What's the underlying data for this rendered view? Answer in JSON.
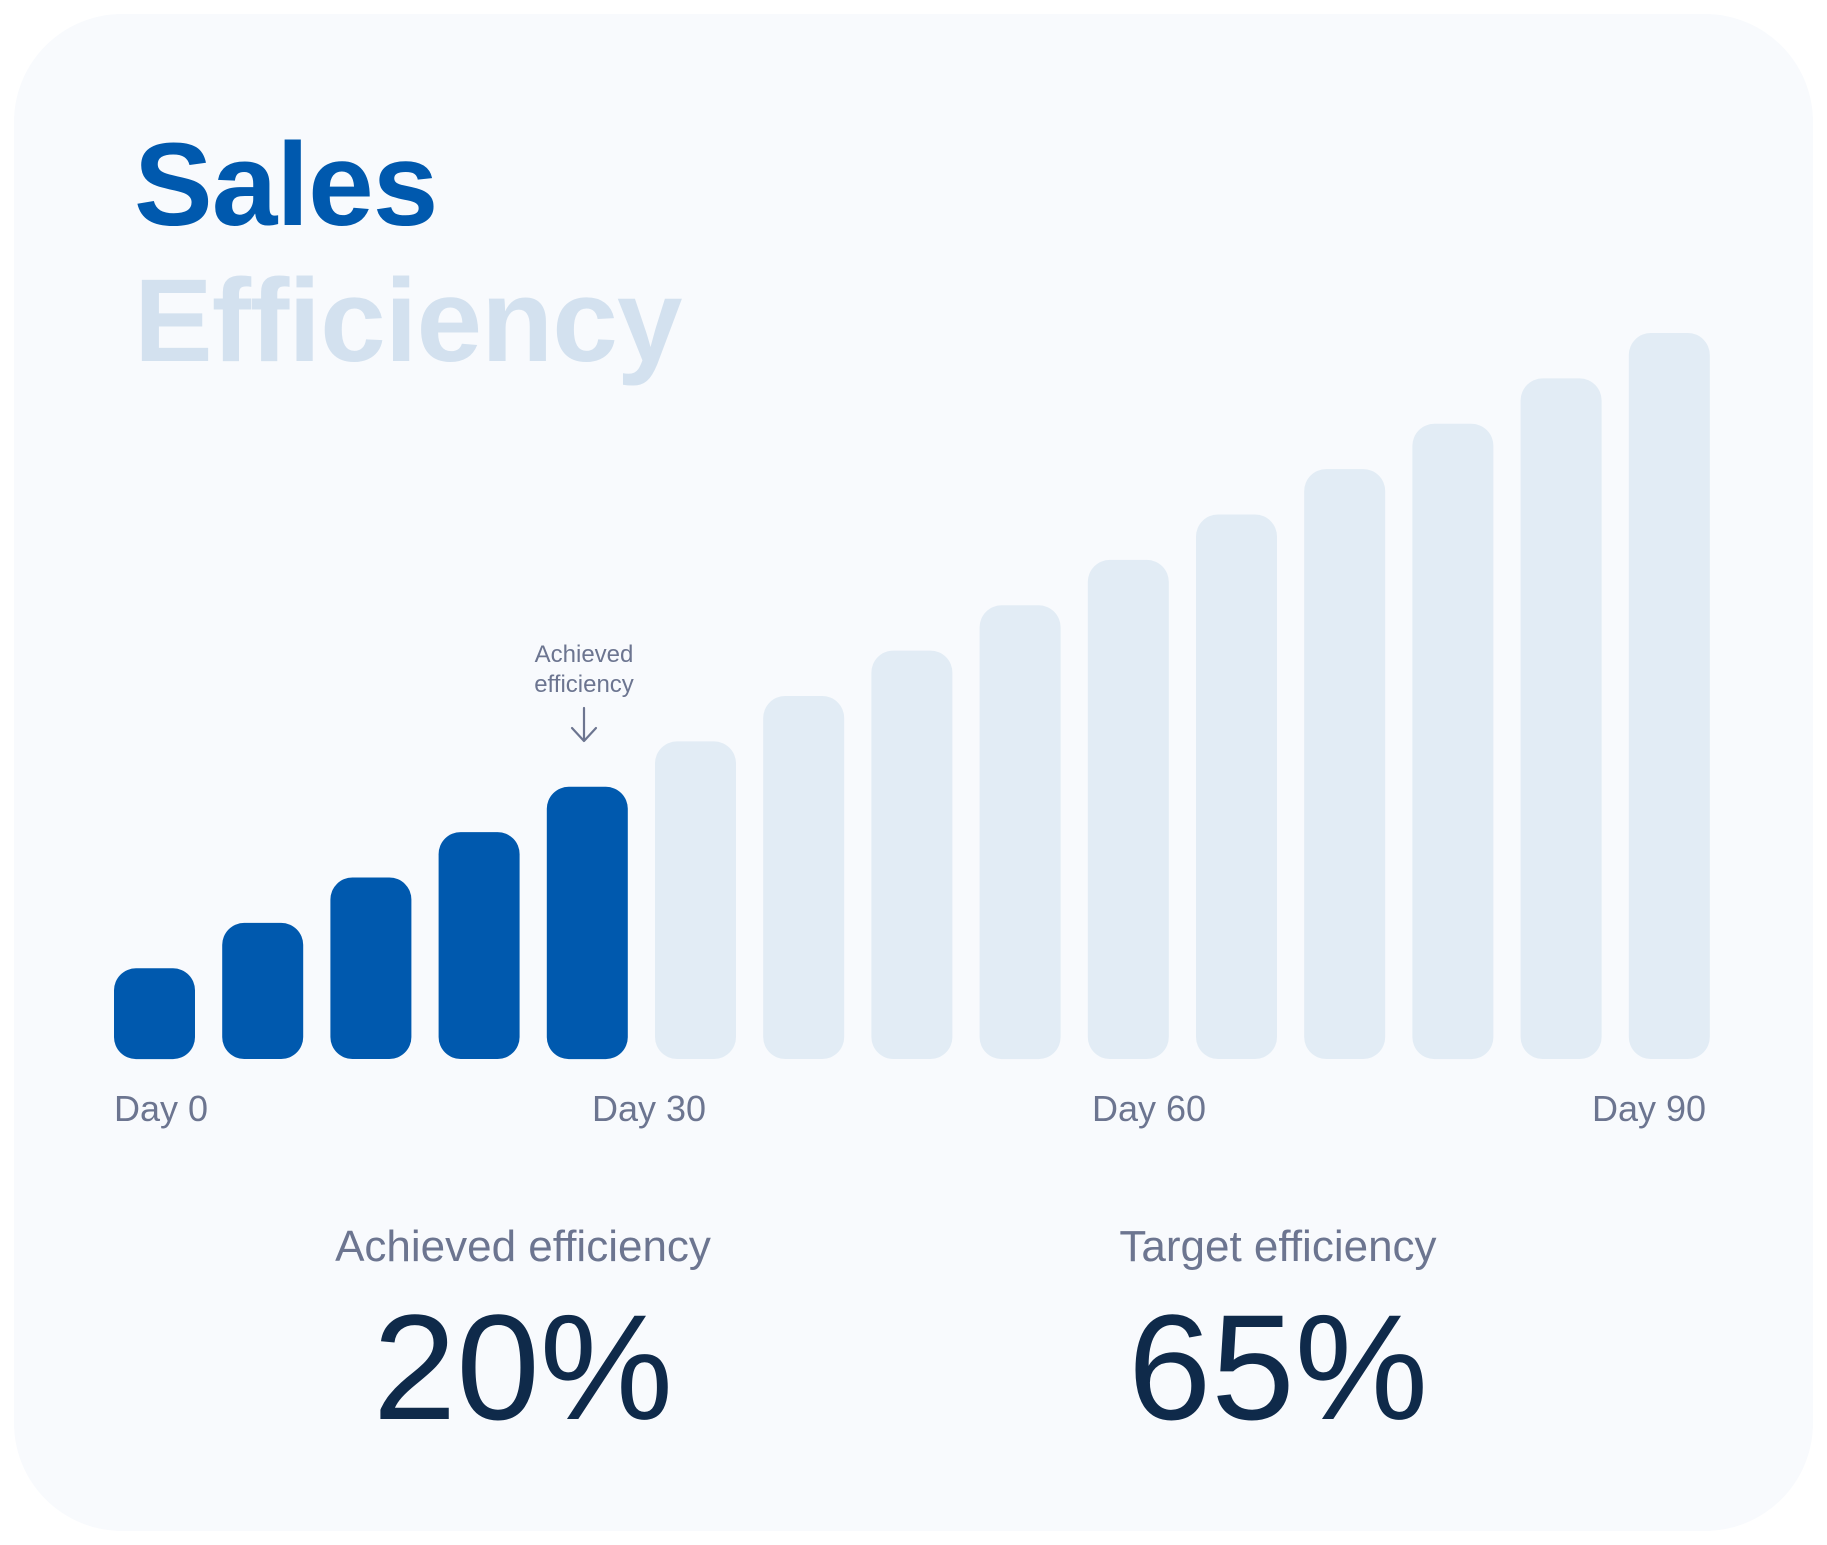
{
  "header": {
    "title_line1": "Sales",
    "title_line2": "Efficiency"
  },
  "annotation": {
    "line1": "Achieved",
    "line2": "efficiency"
  },
  "stats": {
    "achieved_label": "Achieved efficiency",
    "achieved_value": "20%",
    "target_label": "Target efficiency",
    "target_value": "65%"
  },
  "colors": {
    "achieved": "#0059ae",
    "remaining": "#e2ecf5",
    "title_primary": "#0059ae",
    "title_secondary": "#d3e1ef",
    "muted_text": "#6c7590",
    "value_text": "#0f2a4a"
  },
  "chart_data": {
    "type": "bar",
    "x_ticks": [
      "Day 0",
      "Day 30",
      "Day 60",
      "Day 90"
    ],
    "bars": [
      {
        "value": 1.0,
        "achieved": true
      },
      {
        "value": 1.5,
        "achieved": true
      },
      {
        "value": 2.0,
        "achieved": true
      },
      {
        "value": 2.5,
        "achieved": true
      },
      {
        "value": 3.0,
        "achieved": true
      },
      {
        "value": 3.5,
        "achieved": false
      },
      {
        "value": 4.0,
        "achieved": false
      },
      {
        "value": 4.5,
        "achieved": false
      },
      {
        "value": 5.0,
        "achieved": false
      },
      {
        "value": 5.5,
        "achieved": false
      },
      {
        "value": 6.0,
        "achieved": false
      },
      {
        "value": 6.5,
        "achieved": false
      },
      {
        "value": 7.0,
        "achieved": false
      },
      {
        "value": 7.5,
        "achieved": false
      },
      {
        "value": 8.0,
        "achieved": false
      }
    ],
    "ylim": [
      0,
      8
    ],
    "grid": false,
    "legend": "none"
  }
}
